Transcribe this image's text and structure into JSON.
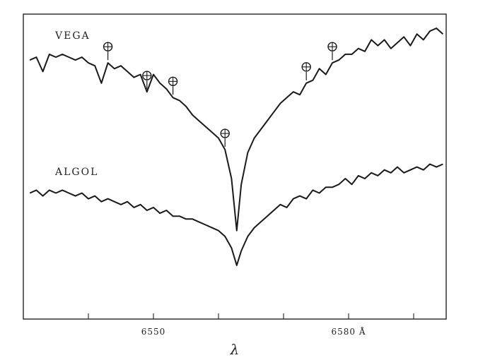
{
  "chart_data": {
    "type": "line",
    "title": "",
    "xlabel": "λ",
    "ylabel": "",
    "x_unit": "Å",
    "xlim": [
      6530,
      6595
    ],
    "ylim": [
      0.18,
      1.12
    ],
    "grid": false,
    "x_ticks": [
      {
        "value": 6530,
        "label": ""
      },
      {
        "value": 6540,
        "label": ""
      },
      {
        "value": 6550,
        "label": "6550"
      },
      {
        "value": 6560,
        "label": ""
      },
      {
        "value": 6570,
        "label": ""
      },
      {
        "value": 6580,
        "label": "6580 Å"
      },
      {
        "value": 6590,
        "label": ""
      }
    ],
    "series": [
      {
        "name": "VEGA",
        "x": [
          6531.0,
          6532.0,
          6533.0,
          6534.0,
          6535.0,
          6536.0,
          6537.0,
          6538.0,
          6539.0,
          6540.0,
          6541.0,
          6542.0,
          6543.0,
          6544.0,
          6545.0,
          6546.0,
          6547.0,
          6548.0,
          6549.0,
          6550.0,
          6551.0,
          6552.0,
          6553.0,
          6554.0,
          6555.0,
          6556.0,
          6557.0,
          6558.0,
          6559.0,
          6560.0,
          6561.0,
          6562.0,
          6562.8,
          6563.5,
          6564.5,
          6565.5,
          6566.5,
          6567.5,
          6568.5,
          6569.5,
          6570.5,
          6571.5,
          6572.5,
          6573.5,
          6574.5,
          6575.5,
          6576.5,
          6577.5,
          6578.5,
          6579.5,
          6580.5,
          6581.5,
          6582.5,
          6583.5,
          6584.5,
          6585.5,
          6586.5,
          6587.5,
          6588.5,
          6589.5,
          6590.5,
          6591.5,
          6592.5,
          6593.5,
          6594.5
        ],
        "y": [
          1.01,
          1.02,
          0.97,
          1.03,
          1.02,
          1.03,
          1.02,
          1.01,
          1.02,
          1.0,
          0.99,
          0.93,
          1.0,
          0.98,
          0.99,
          0.97,
          0.95,
          0.96,
          0.9,
          0.96,
          0.93,
          0.91,
          0.88,
          0.87,
          0.85,
          0.82,
          0.8,
          0.78,
          0.76,
          0.74,
          0.7,
          0.6,
          0.42,
          0.58,
          0.69,
          0.74,
          0.77,
          0.8,
          0.83,
          0.86,
          0.88,
          0.9,
          0.89,
          0.93,
          0.94,
          0.98,
          0.96,
          1.0,
          1.01,
          1.03,
          1.03,
          1.05,
          1.04,
          1.08,
          1.06,
          1.08,
          1.05,
          1.07,
          1.09,
          1.06,
          1.1,
          1.08,
          1.11,
          1.12,
          1.1
        ]
      },
      {
        "name": "ALGOL",
        "x": [
          6531.0,
          6532.0,
          6533.0,
          6534.0,
          6535.0,
          6536.0,
          6537.0,
          6538.0,
          6539.0,
          6540.0,
          6541.0,
          6542.0,
          6543.0,
          6544.0,
          6545.0,
          6546.0,
          6547.0,
          6548.0,
          6549.0,
          6550.0,
          6551.0,
          6552.0,
          6553.0,
          6554.0,
          6555.0,
          6556.0,
          6557.0,
          6558.0,
          6559.0,
          6560.0,
          6561.0,
          6562.0,
          6562.8,
          6563.5,
          6564.5,
          6565.5,
          6566.5,
          6567.5,
          6568.5,
          6569.5,
          6570.5,
          6571.5,
          6572.5,
          6573.5,
          6574.5,
          6575.5,
          6576.5,
          6577.5,
          6578.5,
          6579.5,
          6580.5,
          6581.5,
          6582.5,
          6583.5,
          6584.5,
          6585.5,
          6586.5,
          6587.5,
          6588.5,
          6589.5,
          6590.5,
          6591.5,
          6592.5,
          6593.5,
          6594.5
        ],
        "y": [
          0.55,
          0.56,
          0.54,
          0.56,
          0.55,
          0.56,
          0.55,
          0.54,
          0.55,
          0.53,
          0.54,
          0.52,
          0.53,
          0.52,
          0.51,
          0.52,
          0.5,
          0.51,
          0.49,
          0.5,
          0.48,
          0.49,
          0.47,
          0.47,
          0.46,
          0.46,
          0.45,
          0.44,
          0.43,
          0.42,
          0.4,
          0.36,
          0.3,
          0.35,
          0.4,
          0.43,
          0.45,
          0.47,
          0.49,
          0.51,
          0.5,
          0.53,
          0.54,
          0.53,
          0.56,
          0.55,
          0.57,
          0.57,
          0.58,
          0.6,
          0.58,
          0.61,
          0.6,
          0.62,
          0.61,
          0.63,
          0.62,
          0.64,
          0.62,
          0.63,
          0.64,
          0.63,
          0.65,
          0.64,
          0.65
        ]
      }
    ],
    "annotations": [
      {
        "text": "⊕",
        "series": "VEGA",
        "x": 6543
      },
      {
        "text": "⊕",
        "series": "VEGA",
        "x": 6549
      },
      {
        "text": "⊕",
        "series": "VEGA",
        "x": 6553
      },
      {
        "text": "⊕",
        "series": "VEGA",
        "x": 6561
      },
      {
        "text": "⊕",
        "series": "VEGA",
        "x": 6573.5
      },
      {
        "text": "⊕",
        "series": "VEGA",
        "x": 6577.5
      }
    ],
    "line_color": "#1a1a1a",
    "frame_color": "#333333"
  }
}
